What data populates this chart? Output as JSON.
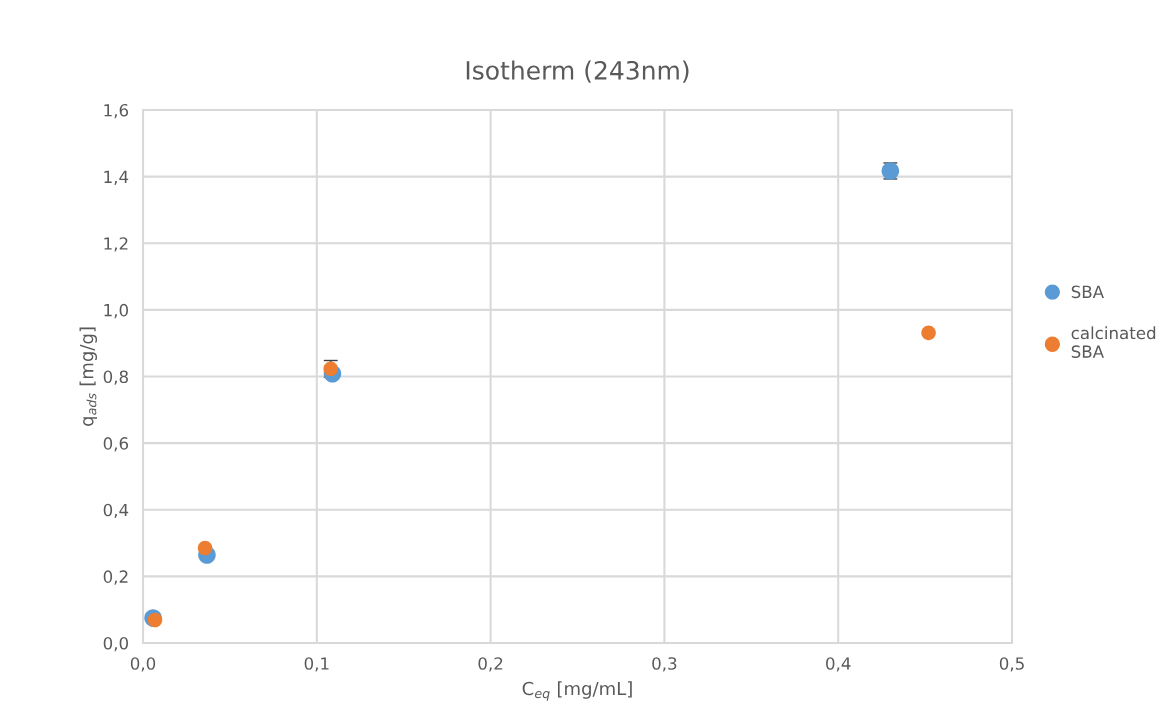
{
  "chart_data": {
    "type": "scatter",
    "title": "Isotherm (243nm)",
    "xlabel": "C$_{eq}$ [mg/mL]",
    "ylabel": "q$_{ads}$ [mg/g]",
    "series": [
      {
        "name": "SBA",
        "color": "#5b9bd5",
        "x": [
          0.0058,
          0.0368,
          0.109,
          0.43
        ],
        "values": [
          0.075,
          0.264,
          0.808,
          1.417
        ],
        "errors": [
          null,
          null,
          null,
          0.024
        ]
      },
      {
        "name": "calcinated SBA",
        "color": "#ed7d31",
        "x": [
          0.0069,
          0.0357,
          0.108,
          0.452
        ],
        "values": [
          0.069,
          0.285,
          0.823,
          0.931
        ],
        "errors": [
          null,
          null,
          0.025,
          null
        ]
      }
    ],
    "xlim": [
      0,
      0.5
    ],
    "ylim": [
      0,
      1.6
    ],
    "xticks": [
      {
        "value": 0,
        "label": "0,0"
      },
      {
        "value": 0.1,
        "label": "0,1"
      },
      {
        "value": 0.2,
        "label": "0,2"
      },
      {
        "value": 0.3,
        "label": "0,3"
      },
      {
        "value": 0.4,
        "label": "0,4"
      },
      {
        "value": 0.5,
        "label": "0,5"
      }
    ],
    "yticks": [
      {
        "value": 0,
        "label": "0,0"
      },
      {
        "value": 0.2,
        "label": "0,2"
      },
      {
        "value": 0.4,
        "label": "0,4"
      },
      {
        "value": 0.6,
        "label": "0,6"
      },
      {
        "value": 0.8,
        "label": "0,8"
      },
      {
        "value": 1.0,
        "label": "1,0"
      },
      {
        "value": 1.2,
        "label": "1,2"
      },
      {
        "value": 1.4,
        "label": "1,4"
      },
      {
        "value": 1.6,
        "label": "1,6"
      }
    ],
    "grid": true,
    "legend": "right",
    "marker": "circle"
  }
}
